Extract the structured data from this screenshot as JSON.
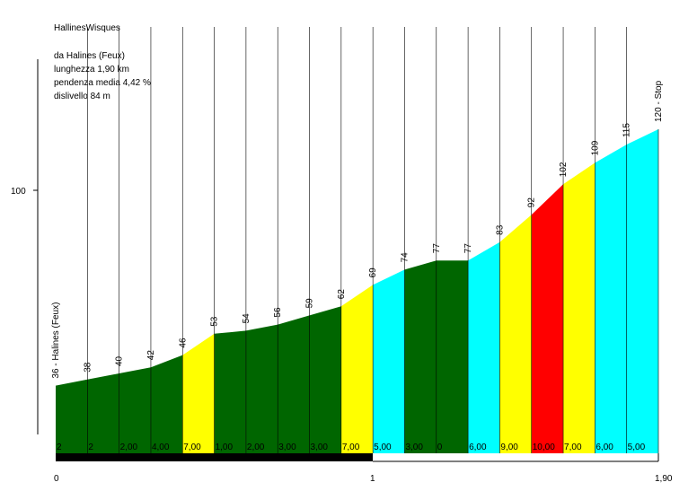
{
  "header": {
    "title": "HallinesWisques",
    "start": "da Halines (Feux)",
    "length": "lunghezza 1,90 km",
    "avg_grade": "pendenza media 4,42 %",
    "elevation_gain": "dislivello 84 m"
  },
  "colors": {
    "dark_green": "#006600",
    "yellow": "#ffff00",
    "cyan": "#00ffff",
    "red": "#ff0000",
    "distance_bar": "#000000"
  },
  "chart_data": {
    "type": "area",
    "title": "HallinesWisques",
    "y_tick": 100,
    "x_tick_labels": [
      "0",
      "1",
      "1,90"
    ],
    "x_max_km": 1.9,
    "points": [
      {
        "km": 0.0,
        "elev": 36,
        "label": "36 - Halines (Feux)"
      },
      {
        "km": 0.1,
        "elev": 38,
        "label": "38"
      },
      {
        "km": 0.2,
        "elev": 40,
        "label": "40"
      },
      {
        "km": 0.3,
        "elev": 42,
        "label": "42"
      },
      {
        "km": 0.4,
        "elev": 46,
        "label": "46"
      },
      {
        "km": 0.5,
        "elev": 53,
        "label": "53"
      },
      {
        "km": 0.6,
        "elev": 54,
        "label": "54"
      },
      {
        "km": 0.7,
        "elev": 56,
        "label": "56"
      },
      {
        "km": 0.8,
        "elev": 59,
        "label": "59"
      },
      {
        "km": 0.9,
        "elev": 62,
        "label": "62"
      },
      {
        "km": 1.0,
        "elev": 69,
        "label": "69"
      },
      {
        "km": 1.1,
        "elev": 74,
        "label": "74"
      },
      {
        "km": 1.2,
        "elev": 77,
        "label": "77"
      },
      {
        "km": 1.3,
        "elev": 77,
        "label": "77"
      },
      {
        "km": 1.4,
        "elev": 83,
        "label": "83"
      },
      {
        "km": 1.5,
        "elev": 92,
        "label": "92"
      },
      {
        "km": 1.6,
        "elev": 102,
        "label": "102"
      },
      {
        "km": 1.7,
        "elev": 109,
        "label": "109"
      },
      {
        "km": 1.8,
        "elev": 115,
        "label": "115"
      },
      {
        "km": 1.9,
        "elev": 120,
        "label": "120 - Stop"
      }
    ],
    "segments": [
      {
        "grade": "2",
        "color": "dark_green"
      },
      {
        "grade": "2",
        "color": "dark_green"
      },
      {
        "grade": "2,00",
        "color": "dark_green"
      },
      {
        "grade": "4,00",
        "color": "dark_green"
      },
      {
        "grade": "7,00",
        "color": "yellow"
      },
      {
        "grade": "1,00",
        "color": "dark_green"
      },
      {
        "grade": "2,00",
        "color": "dark_green"
      },
      {
        "grade": "3,00",
        "color": "dark_green"
      },
      {
        "grade": "3,00",
        "color": "dark_green"
      },
      {
        "grade": "7,00",
        "color": "yellow"
      },
      {
        "grade": "5,00",
        "color": "cyan"
      },
      {
        "grade": "3,00",
        "color": "dark_green"
      },
      {
        "grade": "0",
        "color": "dark_green"
      },
      {
        "grade": "6,00",
        "color": "cyan"
      },
      {
        "grade": "9,00",
        "color": "yellow"
      },
      {
        "grade": "10,00",
        "color": "red"
      },
      {
        "grade": "7,00",
        "color": "yellow"
      },
      {
        "grade": "6,00",
        "color": "cyan"
      },
      {
        "grade": "5,00",
        "color": "cyan"
      }
    ]
  }
}
